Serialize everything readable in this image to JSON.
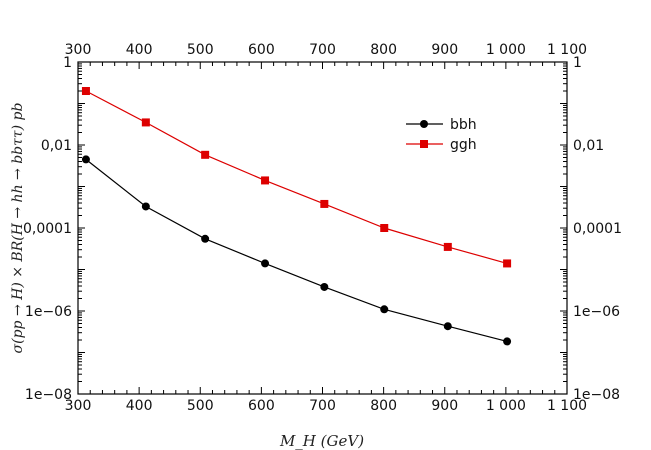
{
  "chart_data": {
    "type": "line",
    "xlabel": "M_H (GeV)",
    "ylabel": "σ(pp → H) × BR(H → hh → bbττ) pb",
    "xlim": [
      300,
      1100
    ],
    "ylim": [
      1e-08,
      1
    ],
    "yscale": "log",
    "x_ticks": [
      300,
      400,
      500,
      600,
      700,
      800,
      900,
      1000,
      1100
    ],
    "x_tick_labels": [
      "300",
      "400",
      "500",
      "600",
      "700",
      "800",
      "900",
      "1 000",
      "1 100"
    ],
    "y_ticks": [
      1e-08,
      1e-06,
      0.0001,
      0.01,
      1
    ],
    "y_tick_labels": [
      "1e−08",
      "1e−06",
      "0,0001",
      "0,01",
      "1"
    ],
    "grid": false,
    "legend_position": "top-right",
    "x": [
      313,
      411,
      508,
      606,
      703,
      801,
      905,
      1002
    ],
    "series": [
      {
        "name": "bbh",
        "color": "#000000",
        "marker": "circle",
        "values": [
          0.0045,
          0.00033,
          5.5e-05,
          1.4e-05,
          3.8e-06,
          1.1e-06,
          4.3e-07,
          1.85e-07
        ]
      },
      {
        "name": "ggh",
        "color": "#dd0000",
        "marker": "square",
        "values": [
          0.2,
          0.035,
          0.0058,
          0.0014,
          0.00038,
          0.0001,
          3.5e-05,
          1.4e-05
        ]
      }
    ]
  }
}
